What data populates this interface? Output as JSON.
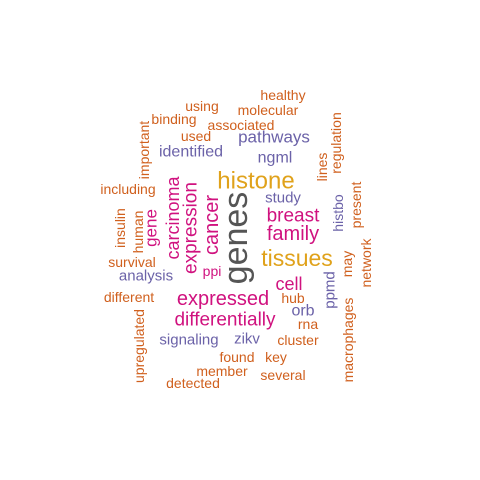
{
  "colors": {
    "gray": "#555555",
    "gold": "#e0a21b",
    "magenta": "#d0127f",
    "purple": "#6b62a8",
    "orange": "#d0601e"
  },
  "words": [
    {
      "text": "genes",
      "color": "gray"
    },
    {
      "text": "histone",
      "color": "gold"
    },
    {
      "text": "tissues",
      "color": "gold"
    },
    {
      "text": "expressed",
      "color": "magenta"
    },
    {
      "text": "differentially",
      "color": "magenta"
    },
    {
      "text": "family",
      "color": "magenta"
    },
    {
      "text": "breast",
      "color": "magenta"
    },
    {
      "text": "cancer",
      "color": "magenta"
    },
    {
      "text": "expression",
      "color": "magenta"
    },
    {
      "text": "carcinoma",
      "color": "magenta"
    },
    {
      "text": "gene",
      "color": "magenta"
    },
    {
      "text": "cell",
      "color": "magenta"
    },
    {
      "text": "ppi",
      "color": "magenta"
    },
    {
      "text": "pathways",
      "color": "purple"
    },
    {
      "text": "identified",
      "color": "purple"
    },
    {
      "text": "ngml",
      "color": "purple"
    },
    {
      "text": "study",
      "color": "purple"
    },
    {
      "text": "analysis",
      "color": "purple"
    },
    {
      "text": "signaling",
      "color": "purple"
    },
    {
      "text": "zikv",
      "color": "purple"
    },
    {
      "text": "orb",
      "color": "purple"
    },
    {
      "text": "ppmd",
      "color": "purple"
    },
    {
      "text": "histbo",
      "color": "purple"
    },
    {
      "text": "healthy",
      "color": "orange"
    },
    {
      "text": "using",
      "color": "orange"
    },
    {
      "text": "molecular",
      "color": "orange"
    },
    {
      "text": "binding",
      "color": "orange"
    },
    {
      "text": "associated",
      "color": "orange"
    },
    {
      "text": "used",
      "color": "orange"
    },
    {
      "text": "important",
      "color": "orange"
    },
    {
      "text": "including",
      "color": "orange"
    },
    {
      "text": "insulin",
      "color": "orange"
    },
    {
      "text": "human",
      "color": "orange"
    },
    {
      "text": "survival",
      "color": "orange"
    },
    {
      "text": "different",
      "color": "orange"
    },
    {
      "text": "upregulated",
      "color": "orange"
    },
    {
      "text": "detected",
      "color": "orange"
    },
    {
      "text": "member",
      "color": "orange"
    },
    {
      "text": "several",
      "color": "orange"
    },
    {
      "text": "found",
      "color": "orange"
    },
    {
      "text": "key",
      "color": "orange"
    },
    {
      "text": "cluster",
      "color": "orange"
    },
    {
      "text": "rna",
      "color": "orange"
    },
    {
      "text": "hub",
      "color": "orange"
    },
    {
      "text": "macrophages",
      "color": "orange"
    },
    {
      "text": "network",
      "color": "orange"
    },
    {
      "text": "may",
      "color": "orange"
    },
    {
      "text": "present",
      "color": "orange"
    },
    {
      "text": "lines",
      "color": "orange"
    },
    {
      "text": "regulation",
      "color": "orange"
    }
  ]
}
